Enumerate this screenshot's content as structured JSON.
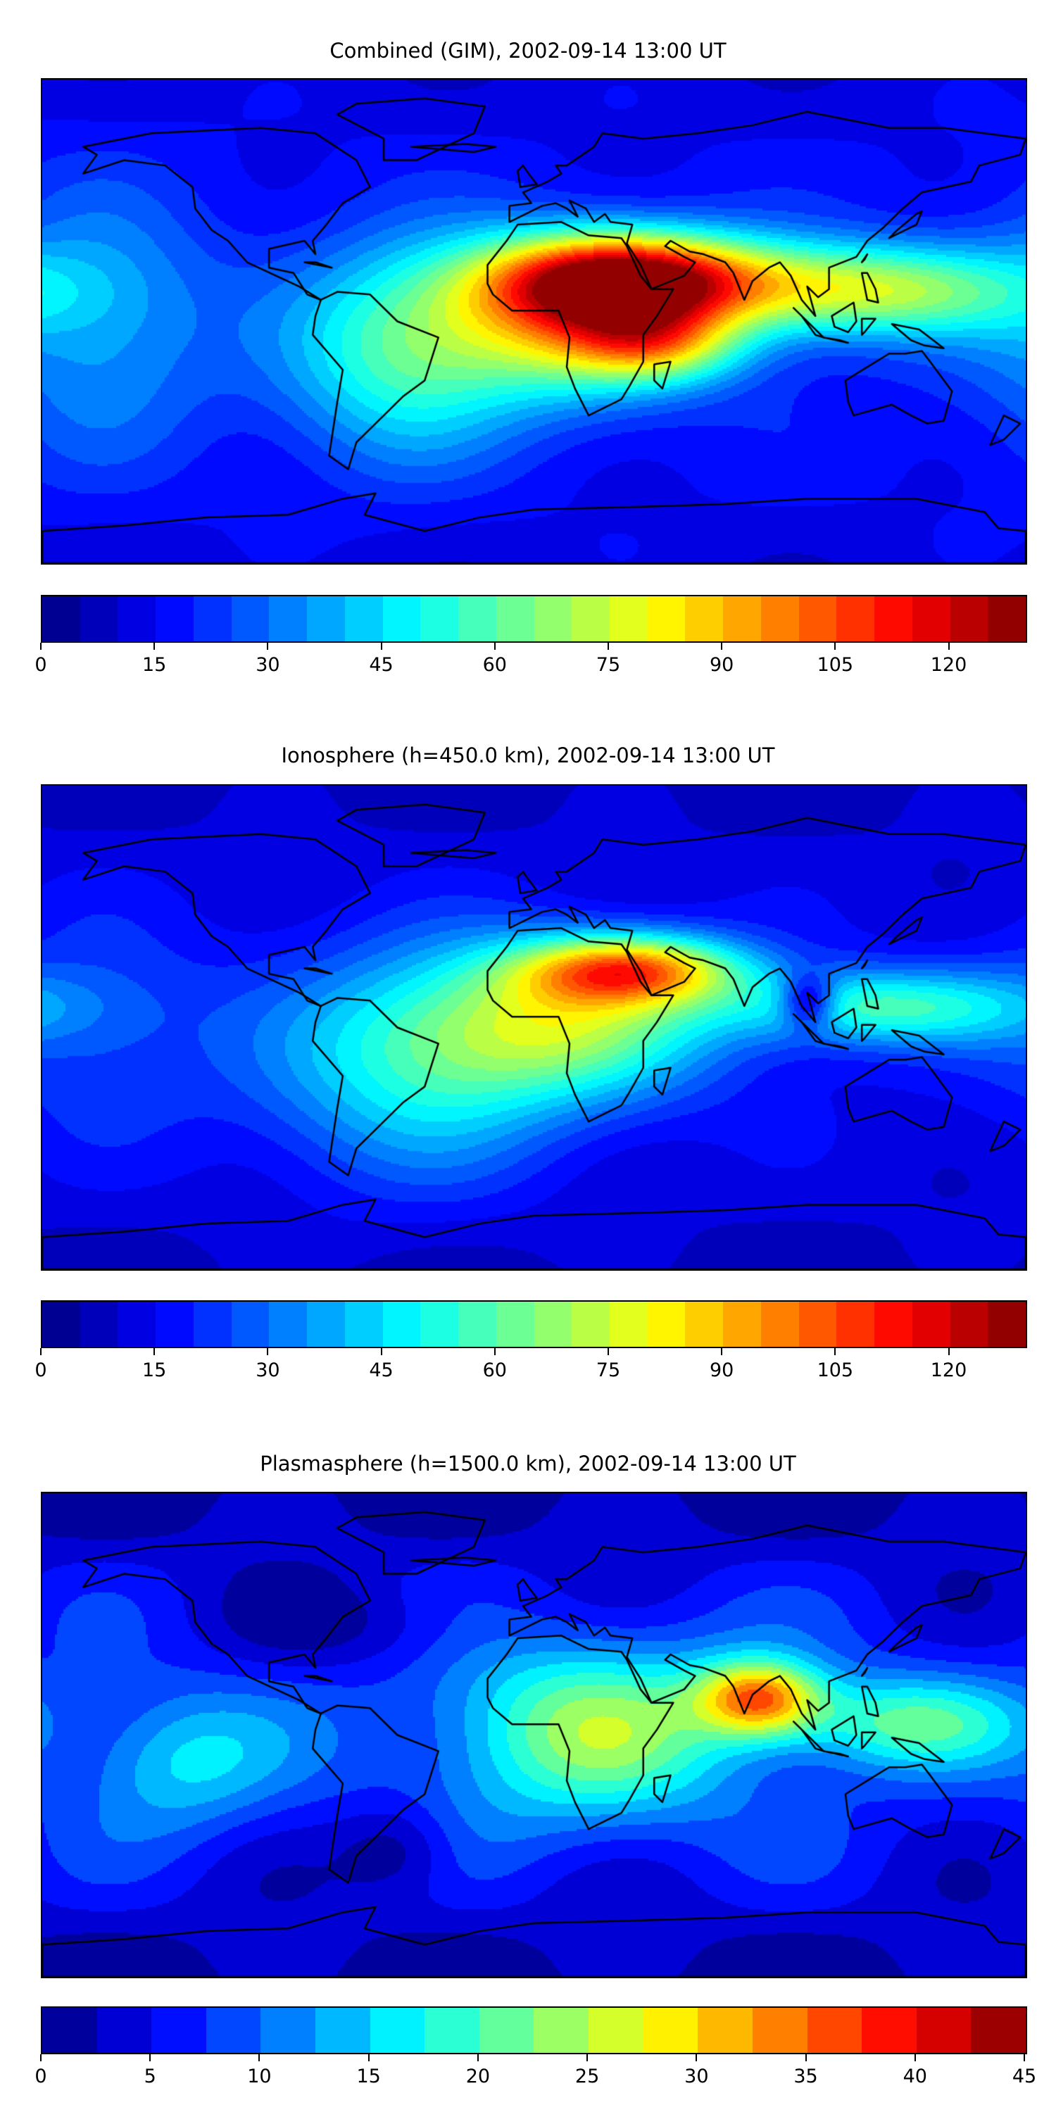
{
  "chart_data": [
    {
      "type": "heatmap",
      "title": "Combined (GIM), 2002-09-14 13:00 UT",
      "projection": "plate-carree",
      "lon_range": [
        -180,
        180
      ],
      "lat_range": [
        -90,
        90
      ],
      "levels": {
        "min": 0,
        "max": 130,
        "step": 5
      },
      "colorbar_ticks": [
        0,
        15,
        30,
        45,
        60,
        75,
        90,
        105,
        120
      ],
      "colormap": "jet",
      "field": {
        "base": 18,
        "peaks": [
          {
            "lon": 35,
            "lat": 16,
            "value": 100,
            "slon": 35,
            "slat": 12
          },
          {
            "lon": 10,
            "lat": 0,
            "value": 55,
            "slon": 35,
            "slat": 20
          },
          {
            "lon": 45,
            "lat": -8,
            "value": 45,
            "slon": 22,
            "slat": 10
          },
          {
            "lon": 120,
            "lat": 12,
            "value": 55,
            "slon": 40,
            "slat": 12
          },
          {
            "lon": -50,
            "lat": -12,
            "value": 35,
            "slon": 30,
            "slat": 28
          },
          {
            "lon": -160,
            "lat": 0,
            "value": 20,
            "slon": 30,
            "slat": 35
          }
        ]
      }
    },
    {
      "type": "heatmap",
      "title": "Ionosphere  (h=450.0 km), 2002-09-14 13:00 UT",
      "projection": "plate-carree",
      "lon_range": [
        -180,
        180
      ],
      "lat_range": [
        -90,
        90
      ],
      "levels": {
        "min": 0,
        "max": 130,
        "step": 5
      },
      "colorbar_ticks": [
        0,
        15,
        30,
        45,
        60,
        75,
        90,
        105,
        120
      ],
      "colormap": "jet",
      "field": {
        "base": 14,
        "peaks": [
          {
            "lon": 35,
            "lat": 22,
            "value": 70,
            "slon": 28,
            "slat": 9
          },
          {
            "lon": 10,
            "lat": 2,
            "value": 50,
            "slon": 40,
            "slat": 20
          },
          {
            "lon": 125,
            "lat": 8,
            "value": 42,
            "slon": 40,
            "slat": 10
          },
          {
            "lon": 100,
            "lat": 10,
            "value": -35,
            "slon": 7,
            "slat": 7
          },
          {
            "lon": -45,
            "lat": -15,
            "value": 32,
            "slon": 40,
            "slat": 30
          },
          {
            "lon": -160,
            "lat": 0,
            "value": 12,
            "slon": 30,
            "slat": 30
          }
        ]
      }
    },
    {
      "type": "heatmap",
      "title": "Plasmasphere (h=1500.0 km), 2002-09-14 13:00 UT",
      "projection": "plate-carree",
      "lon_range": [
        -180,
        180
      ],
      "lat_range": [
        -90,
        90
      ],
      "levels": {
        "min": 0,
        "max": 45,
        "step": 2.5
      },
      "colorbar_ticks": [
        0,
        5,
        10,
        15,
        20,
        25,
        30,
        35,
        40,
        45
      ],
      "colormap": "jet",
      "field": {
        "base": 7,
        "peaks": [
          {
            "lon": 82,
            "lat": 14,
            "value": 25,
            "slon": 16,
            "slat": 10
          },
          {
            "lon": 20,
            "lat": 2,
            "value": 16,
            "slon": 40,
            "slat": 25
          },
          {
            "lon": 135,
            "lat": 5,
            "value": 13,
            "slon": 30,
            "slat": 12
          },
          {
            "lon": -130,
            "lat": -10,
            "value": 9,
            "slon": 25,
            "slat": 18
          },
          {
            "lon": -50,
            "lat": -42,
            "value": -6,
            "slon": 15,
            "slat": 12
          },
          {
            "lon": -60,
            "lat": 40,
            "value": -4,
            "slon": 40,
            "slat": 12
          }
        ]
      }
    }
  ]
}
